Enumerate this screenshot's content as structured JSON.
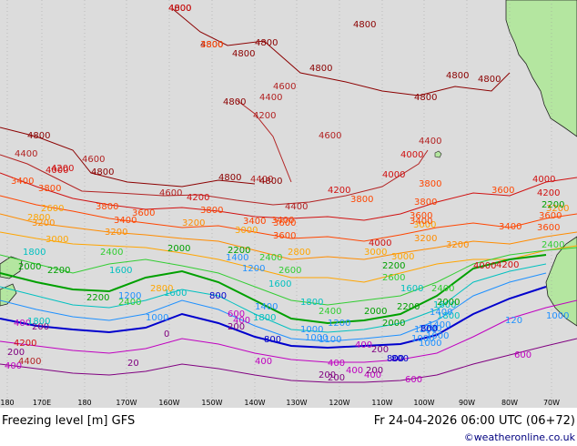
{
  "map": {
    "title": "Freezing level [m] GFS",
    "valid_time": "Fr 24-04-2026 06:00 UTC (06+72)",
    "credit": "©weatheronline.co.uk",
    "longitude_labels": [
      "180",
      "170E",
      "180",
      "170W",
      "160W",
      "150W",
      "140W",
      "130W",
      "120W",
      "110W",
      "100W",
      "90W",
      "80W",
      "70W"
    ],
    "colors": {
      "ocean": "#dcdcdc",
      "land": "#b4e6a0",
      "coast": "#222222",
      "contour_4800": "#8b0000",
      "contour_4400": "#b22222",
      "contour_4000": "#d01010",
      "contour_3600": "#ff4500",
      "contour_3200": "#ff8c00",
      "contour_2800": "#ffa500",
      "contour_2400": "#32cd32",
      "contour_2000": "#00a000",
      "contour_1600": "#00c0c0",
      "contour_1200": "#1e90ff",
      "contour_800": "#0000cd",
      "contour_400": "#c000c0",
      "contour_0": "#800080"
    },
    "contour_labels": [
      {
        "text": "4800",
        "level": "4800"
      },
      {
        "text": "4800",
        "level": "4800"
      },
      {
        "text": "4800",
        "level": "4800"
      },
      {
        "text": "4800",
        "level": "4800"
      },
      {
        "text": "4800",
        "level": "4800"
      },
      {
        "text": "4800",
        "level": "4800"
      },
      {
        "text": "4800",
        "level": "4800"
      },
      {
        "text": "4800",
        "level": "4800"
      },
      {
        "text": "4800",
        "level": "4800"
      },
      {
        "text": "4600",
        "level": "4400"
      },
      {
        "text": "4400",
        "level": "4400"
      },
      {
        "text": "4200",
        "level": "4400"
      },
      {
        "text": "4800",
        "level": "4800"
      },
      {
        "text": "4600",
        "level": "4400"
      },
      {
        "text": "4400",
        "level": "4400"
      },
      {
        "text": "4000",
        "level": "4000"
      },
      {
        "text": "4800",
        "level": "4800"
      },
      {
        "text": "4400",
        "level": "4400"
      },
      {
        "text": "4600",
        "level": "4400"
      },
      {
        "text": "4800",
        "level": "4800"
      },
      {
        "text": "4000",
        "level": "4000"
      },
      {
        "text": "3400",
        "level": "3600"
      },
      {
        "text": "3800",
        "level": "3600"
      },
      {
        "text": "4200",
        "level": "4000"
      },
      {
        "text": "4600",
        "level": "4400"
      },
      {
        "text": "4800",
        "level": "4800"
      },
      {
        "text": "4400",
        "level": "4400"
      },
      {
        "text": "4200",
        "level": "4000"
      },
      {
        "text": "3800",
        "level": "3600"
      },
      {
        "text": "4400",
        "level": "4400"
      },
      {
        "text": "4800",
        "level": "4800"
      },
      {
        "text": "4200",
        "level": "4000"
      },
      {
        "text": "4000",
        "level": "4000"
      },
      {
        "text": "3600",
        "level": "3600"
      },
      {
        "text": "3400",
        "level": "3600"
      },
      {
        "text": "3000",
        "level": "2800"
      },
      {
        "text": "3200",
        "level": "3200"
      },
      {
        "text": "3800",
        "level": "3600"
      },
      {
        "text": "3600",
        "level": "3600"
      },
      {
        "text": "3200",
        "level": "3200"
      },
      {
        "text": "3000",
        "level": "2800"
      },
      {
        "text": "2800",
        "level": "2800"
      },
      {
        "text": "2600",
        "level": "2800"
      },
      {
        "text": "3600",
        "level": "3600"
      },
      {
        "text": "3400",
        "level": "3600"
      },
      {
        "text": "3800",
        "level": "3600"
      },
      {
        "text": "4000",
        "level": "4000"
      },
      {
        "text": "3600",
        "level": "3600"
      },
      {
        "text": "3200",
        "level": "3200"
      },
      {
        "text": "4200",
        "level": "4000"
      },
      {
        "text": "4000",
        "level": "4000"
      },
      {
        "text": "3600",
        "level": "3600"
      },
      {
        "text": "3400",
        "level": "3600"
      },
      {
        "text": "3000",
        "level": "2800"
      },
      {
        "text": "3200",
        "level": "3200"
      },
      {
        "text": "3000",
        "level": "2800"
      },
      {
        "text": "2800",
        "level": "2800"
      },
      {
        "text": "2200",
        "level": "2000"
      },
      {
        "text": "2000",
        "level": "2000"
      },
      {
        "text": "1600",
        "level": "1600"
      },
      {
        "text": "1200",
        "level": "1200"
      },
      {
        "text": "1400",
        "level": "1200"
      },
      {
        "text": "2400",
        "level": "2400"
      },
      {
        "text": "2600",
        "level": "2400"
      },
      {
        "text": "2200",
        "level": "2000"
      },
      {
        "text": "2400",
        "level": "2400"
      },
      {
        "text": "1600",
        "level": "1600"
      },
      {
        "text": "1200",
        "level": "1200"
      },
      {
        "text": "1000",
        "level": "1200"
      },
      {
        "text": "800",
        "level": "800"
      },
      {
        "text": "600",
        "level": "400"
      },
      {
        "text": "400",
        "level": "400"
      },
      {
        "text": "200",
        "level": "0"
      },
      {
        "text": "800",
        "level": "800"
      },
      {
        "text": "1400",
        "level": "1200"
      },
      {
        "text": "1000",
        "level": "1200"
      },
      {
        "text": "1800",
        "level": "1600"
      },
      {
        "text": "1100",
        "level": "1200"
      },
      {
        "text": "1600",
        "level": "1600"
      },
      {
        "text": "2400",
        "level": "2400"
      },
      {
        "text": "2000",
        "level": "2000"
      },
      {
        "text": "2200",
        "level": "2000"
      },
      {
        "text": "1600",
        "level": "1600"
      },
      {
        "text": "1800",
        "level": "1600"
      },
      {
        "text": "1400",
        "level": "1200"
      },
      {
        "text": "1200",
        "level": "1200"
      },
      {
        "text": "1000",
        "level": "1200"
      },
      {
        "text": "800",
        "level": "800"
      },
      {
        "text": "400",
        "level": "400"
      },
      {
        "text": "200",
        "level": "0"
      },
      {
        "text": "400",
        "level": "400"
      },
      {
        "text": "600",
        "level": "400"
      },
      {
        "text": "800",
        "level": "800"
      },
      {
        "text": "1000",
        "level": "1200"
      },
      {
        "text": "1200",
        "level": "1200"
      },
      {
        "text": "1400",
        "level": "1200"
      },
      {
        "text": "1600",
        "level": "1600"
      },
      {
        "text": "2000",
        "level": "2000"
      },
      {
        "text": "2400",
        "level": "2400"
      },
      {
        "text": "2200",
        "level": "2000"
      },
      {
        "text": "2600",
        "level": "2400"
      },
      {
        "text": "3000",
        "level": "2800"
      },
      {
        "text": "3200",
        "level": "3200"
      },
      {
        "text": "3400",
        "level": "3600"
      },
      {
        "text": "3600",
        "level": "3600"
      },
      {
        "text": "3800",
        "level": "3600"
      },
      {
        "text": "4000",
        "level": "4000"
      },
      {
        "text": "4200",
        "level": "4000"
      },
      {
        "text": "120",
        "level": "1200"
      },
      {
        "text": "1000",
        "level": "1200"
      },
      {
        "text": "600",
        "level": "400"
      },
      {
        "text": "400",
        "level": "400"
      },
      {
        "text": "200",
        "level": "0"
      },
      {
        "text": "1800",
        "level": "1600"
      },
      {
        "text": "1800",
        "level": "1600"
      },
      {
        "text": "2000",
        "level": "2000"
      },
      {
        "text": "2200",
        "level": "2000"
      },
      {
        "text": "2400",
        "level": "2400"
      },
      {
        "text": "2800",
        "level": "2800"
      },
      {
        "text": "3200",
        "level": "3200"
      },
      {
        "text": "3400",
        "level": "3600"
      },
      {
        "text": "3800",
        "level": "3600"
      },
      {
        "text": "4200",
        "level": "4000"
      },
      {
        "text": "4400",
        "level": "4400"
      },
      {
        "text": "200",
        "level": "0"
      },
      {
        "text": "400",
        "level": "400"
      },
      {
        "text": "20",
        "level": "0"
      },
      {
        "text": "0",
        "level": "0"
      },
      {
        "text": "400",
        "level": "400"
      },
      {
        "text": "400",
        "level": "400"
      },
      {
        "text": "200",
        "level": "0"
      },
      {
        "text": "200",
        "level": "0"
      },
      {
        "text": "200",
        "level": "0"
      },
      {
        "text": "400",
        "level": "400"
      },
      {
        "text": "1000",
        "level": "1200"
      },
      {
        "text": "800",
        "level": "800"
      },
      {
        "text": "1000",
        "level": "1200"
      },
      {
        "text": "1200",
        "level": "1200"
      },
      {
        "text": "1800",
        "level": "1600"
      },
      {
        "text": "2000",
        "level": "2000"
      },
      {
        "text": "2400",
        "level": "2400"
      },
      {
        "text": "2200",
        "level": "2000"
      },
      {
        "text": "3600",
        "level": "3600"
      },
      {
        "text": "4000",
        "level": "4000"
      },
      {
        "text": "3800",
        "level": "3600"
      }
    ]
  }
}
